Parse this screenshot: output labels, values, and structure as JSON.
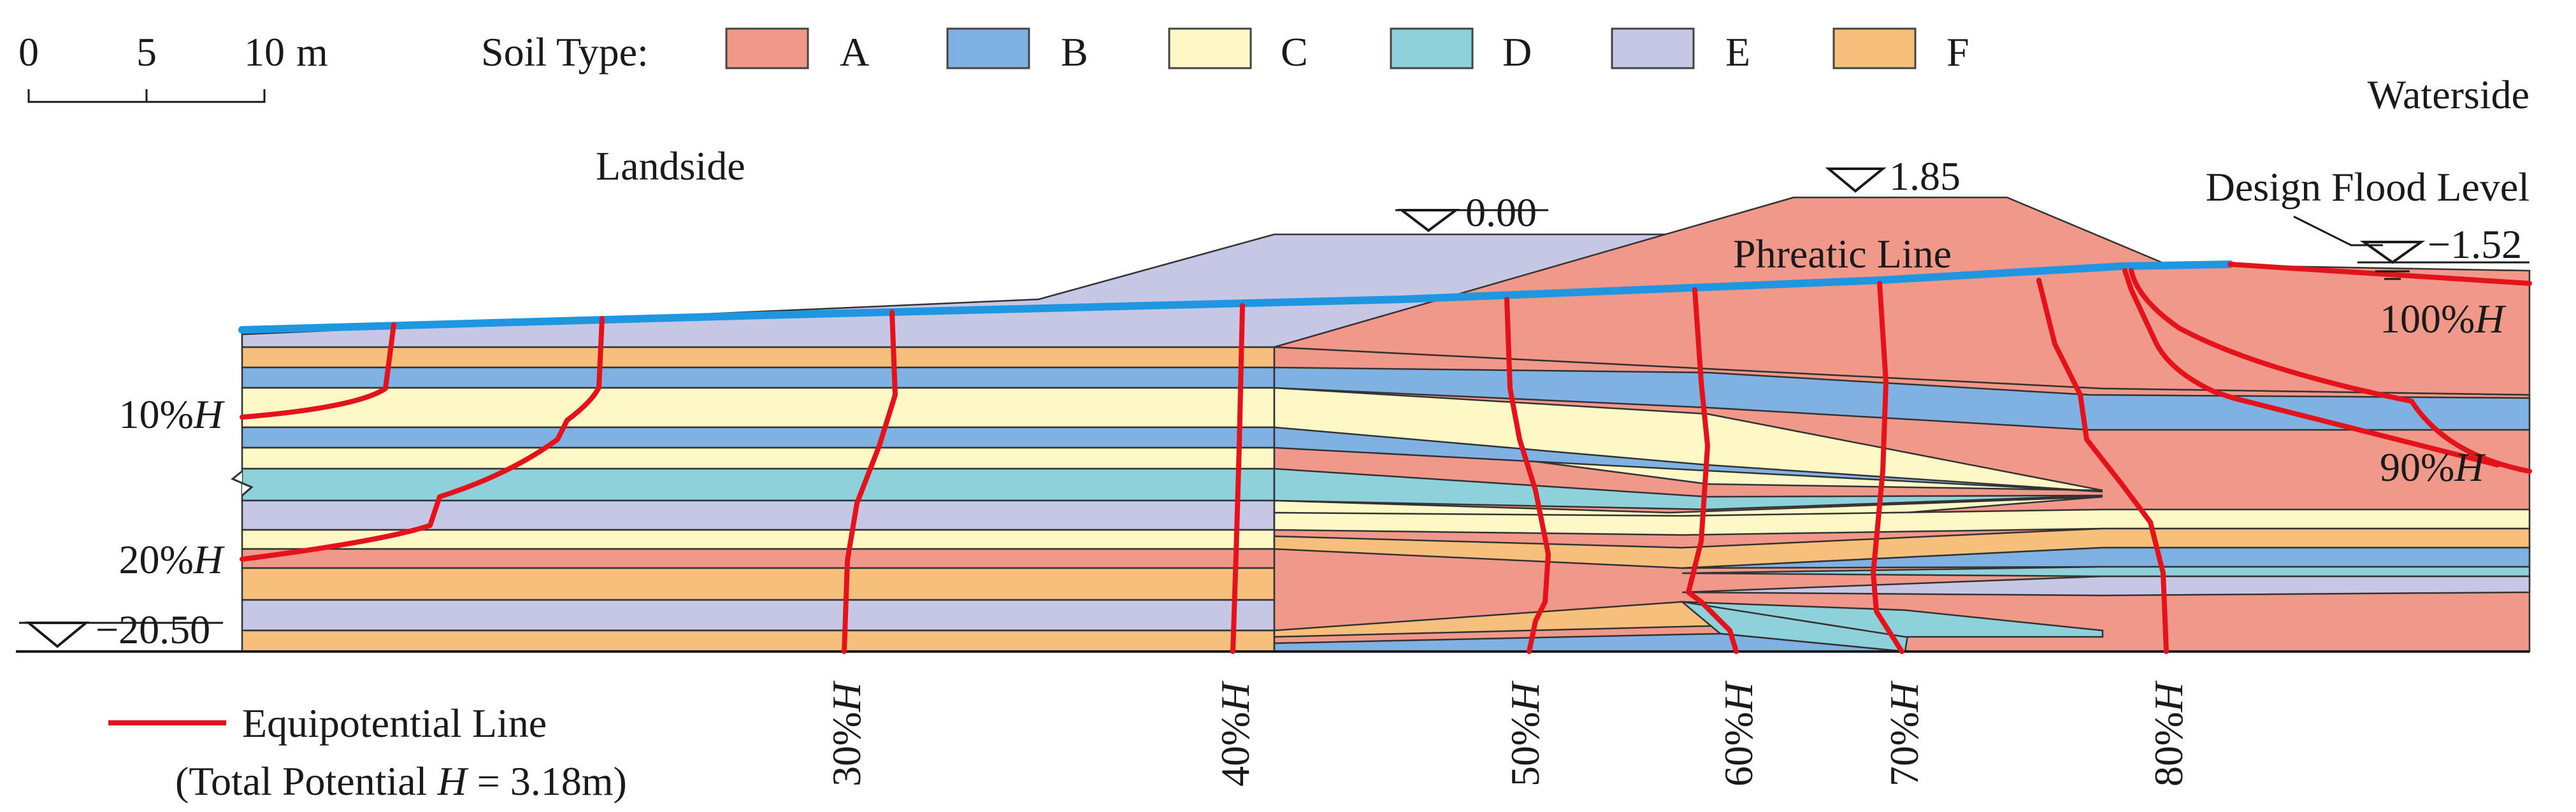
{
  "scale_bar": {
    "ticks": [
      "0",
      "5",
      "10"
    ],
    "unit": "m"
  },
  "legend": {
    "title": "Soil Type:",
    "soils": [
      {
        "id": "A",
        "label": "A",
        "color": "#f0998a"
      },
      {
        "id": "B",
        "label": "B",
        "color": "#7fb2e3"
      },
      {
        "id": "C",
        "label": "C",
        "color": "#fdf8c6"
      },
      {
        "id": "D",
        "label": "D",
        "color": "#8fd1db"
      },
      {
        "id": "E",
        "label": "E",
        "color": "#c6c6e5"
      },
      {
        "id": "F",
        "label": "F",
        "color": "#f7bf7c"
      }
    ],
    "equipotential_label": "Equipotential Line",
    "equipotential_color": "#e3121b",
    "total_potential_prefix": "(Total Potential ",
    "total_potential_var": "H",
    "total_potential_value": " = 3.18m)"
  },
  "labels": {
    "waterside": "Waterside",
    "landside": "Landside",
    "design_flood_level": "Design Flood Level",
    "phreatic_line": "Phreatic Line",
    "phreatic_color": "#1e96e0"
  },
  "elevations": {
    "berm_top": "0.00",
    "dike_crest": "1.85",
    "flood_level": "−1.52",
    "bottom": "−20.50"
  },
  "equipotentials": [
    {
      "value": "10%",
      "var": "H"
    },
    {
      "value": "20%",
      "var": "H"
    },
    {
      "value": "30%",
      "var": "H"
    },
    {
      "value": "40%",
      "var": "H"
    },
    {
      "value": "50%",
      "var": "H"
    },
    {
      "value": "60%",
      "var": "H"
    },
    {
      "value": "70%",
      "var": "H"
    },
    {
      "value": "80%",
      "var": "H"
    },
    {
      "value": "90%",
      "var": "H"
    },
    {
      "value": "100%",
      "var": "H"
    }
  ]
}
